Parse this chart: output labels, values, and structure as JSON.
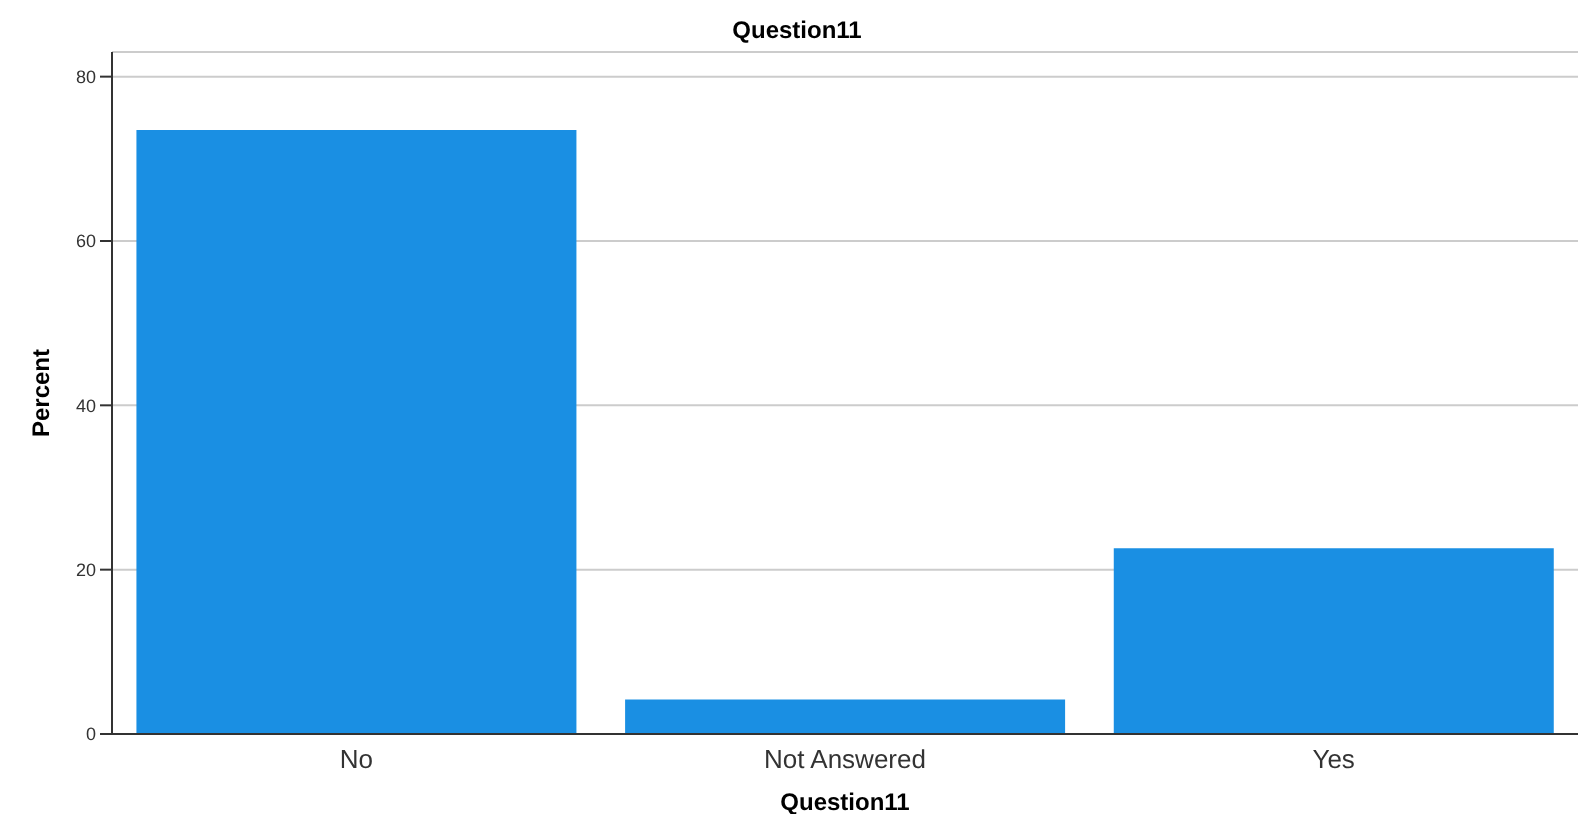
{
  "chart_data": {
    "type": "bar",
    "title": "Question11",
    "xlabel": "Question11",
    "ylabel": "Percent",
    "categories": [
      "No",
      "Not Answered",
      "Yes"
    ],
    "values": [
      73.5,
      4.2,
      22.6
    ],
    "color": "#1a8fe3",
    "ylim": [
      0,
      83
    ],
    "yticks": [
      0,
      20,
      40,
      60,
      80
    ],
    "grid": "y"
  }
}
